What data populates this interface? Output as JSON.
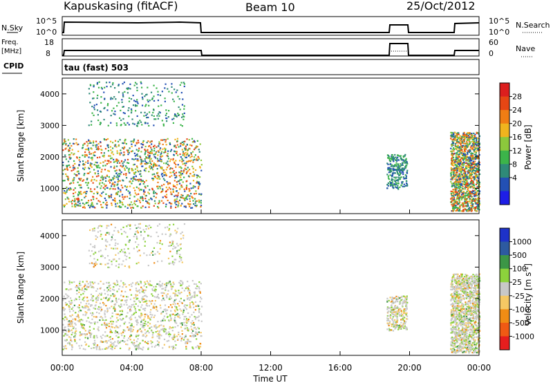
{
  "header": {
    "station": "Kapuskasing (fitACF)",
    "beam": "Beam 10",
    "date": "25/Oct/2012"
  },
  "panels": {
    "nsky": {
      "left_label": "N.Sky",
      "right_label": "N.Search",
      "left_ticks": [
        "10^5",
        "10^0"
      ],
      "right_ticks": [
        "10^5",
        "10^0"
      ]
    },
    "freq": {
      "left_label_1": "Freq.",
      "left_label_2": "[MHz]",
      "right_label": "Nave",
      "left_ticks": [
        "18",
        "8"
      ],
      "right_ticks": [
        "60",
        "0"
      ]
    },
    "cpid": {
      "label": "CPID",
      "value": "tau (fast) 503"
    }
  },
  "colors": {
    "power": [
      "#1e1ee6",
      "#2350b4",
      "#2f8a78",
      "#3cb44a",
      "#8cc83c",
      "#f0b41e",
      "#f07d14",
      "#e64614",
      "#dc1e1e"
    ],
    "velocity": [
      "#e61e1e",
      "#f05a14",
      "#f08c14",
      "#f5c864",
      "#c8c8c8",
      "#8cd23c",
      "#3c9646",
      "#2d5aa0",
      "#1e32c8"
    ]
  },
  "chart_data": [
    {
      "type": "heatmap",
      "title": "",
      "xlabel": "Time UT",
      "ylabel": "Slant Range [km]",
      "x_ticks": [
        "00:00",
        "04:00",
        "08:00",
        "12:00",
        "16:00",
        "20:00",
        "00:00"
      ],
      "y_ticks": [
        1000,
        2000,
        3000,
        4000
      ],
      "xlim_hours": [
        0,
        24
      ],
      "ylim": [
        200,
        4500
      ],
      "colorbar": {
        "label": "Power [dB]",
        "ticks": [
          "4",
          "8",
          "12",
          "16",
          "20",
          "24",
          "28"
        ]
      },
      "data_blocks": [
        {
          "t_start": "00:00",
          "t_end": "08:00",
          "range_km": [
            400,
            2600
          ],
          "level": "mixed"
        },
        {
          "t_start": "01:30",
          "t_end": "07:00",
          "range_km": [
            3000,
            4400
          ],
          "level": "low"
        },
        {
          "t_start": "18:40",
          "t_end": "19:50",
          "range_km": [
            1000,
            2100
          ],
          "level": "low"
        },
        {
          "t_start": "22:20",
          "t_end": "24:00",
          "range_km": [
            300,
            2800
          ],
          "level": "mixed"
        }
      ]
    },
    {
      "type": "heatmap",
      "title": "",
      "xlabel": "Time UT",
      "ylabel": "Slant Range [km]",
      "x_ticks": [
        "00:00",
        "04:00",
        "08:00",
        "12:00",
        "16:00",
        "20:00",
        "00:00"
      ],
      "y_ticks": [
        1000,
        2000,
        3000,
        4000
      ],
      "xlim_hours": [
        0,
        24
      ],
      "ylim": [
        200,
        4500
      ],
      "colorbar": {
        "label": "Velocity [m s^-1]",
        "ticks": [
          "1000",
          "500",
          "100",
          "25",
          "-25",
          "-100",
          "-500",
          "-1000"
        ]
      },
      "data_blocks": [
        {
          "t_start": "00:00",
          "t_end": "08:00",
          "range_km": [
            400,
            2600
          ],
          "level": "mixed"
        },
        {
          "t_start": "01:30",
          "t_end": "07:00",
          "range_km": [
            3000,
            4400
          ],
          "level": "low"
        },
        {
          "t_start": "18:40",
          "t_end": "19:50",
          "range_km": [
            1000,
            2100
          ],
          "level": "low"
        },
        {
          "t_start": "22:20",
          "t_end": "24:00",
          "range_km": [
            300,
            2800
          ],
          "level": "mixed"
        }
      ]
    }
  ]
}
